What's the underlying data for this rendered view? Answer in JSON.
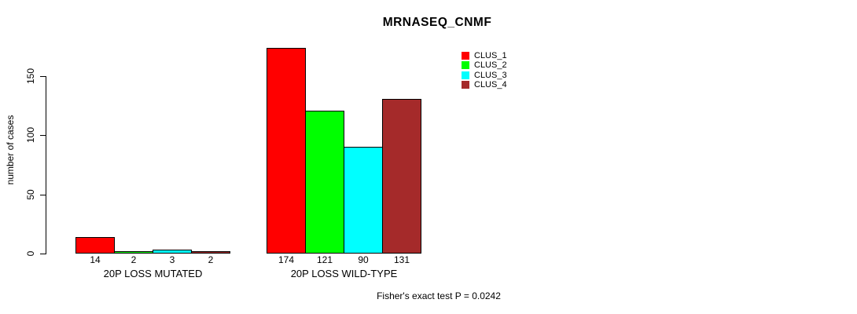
{
  "chart_data": {
    "type": "bar",
    "title": "MRNASEQ_CNMF",
    "xlabel": "",
    "ylabel": "number of cases",
    "categories": [
      "20P LOSS MUTATED",
      "20P LOSS WILD-TYPE"
    ],
    "series": [
      {
        "name": "CLUS_1",
        "color": "#ff0000",
        "values": [
          14,
          174
        ]
      },
      {
        "name": "CLUS_2",
        "color": "#00ff00",
        "values": [
          2,
          121
        ]
      },
      {
        "name": "CLUS_3",
        "color": "#00ffff",
        "values": [
          3,
          90
        ]
      },
      {
        "name": "CLUS_4",
        "color": "#a52a2a",
        "values": [
          2,
          131
        ]
      }
    ],
    "bar_value_labels": [
      [
        14,
        2,
        3,
        2
      ],
      [
        174,
        121,
        90,
        131
      ]
    ],
    "yticks": [
      0,
      50,
      100,
      150
    ],
    "ylim": [
      0,
      174
    ],
    "grid": false,
    "legend_position": "top-right",
    "legend_entries": [
      "CLUS_1",
      "CLUS_2",
      "CLUS_3",
      "CLUS_4"
    ],
    "annotation": "Fisher's exact test P = 0.0242",
    "bar_edge_color": "#000000",
    "background_color": "#ffffff",
    "text_color": "#000000"
  }
}
